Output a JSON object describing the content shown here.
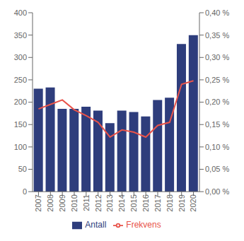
{
  "chart_data": {
    "type": "bar",
    "categories": [
      "2007",
      "2008",
      "2009",
      "2010",
      "2011",
      "2012",
      "2013",
      "2014",
      "2015",
      "2016",
      "2017",
      "2018",
      "2019",
      "2020"
    ],
    "series": [
      {
        "name": "Antall",
        "type": "bar",
        "color": "#2E3D7C",
        "values": [
          230,
          233,
          185,
          185,
          190,
          181,
          153,
          181,
          178,
          168,
          205,
          210,
          330,
          350
        ]
      },
      {
        "name": "Frekvens",
        "type": "line",
        "axis": "y2",
        "color": "#E8534A",
        "values": [
          0.00185,
          0.00195,
          0.00205,
          0.00183,
          0.0017,
          0.00155,
          0.00122,
          0.00138,
          0.00133,
          0.00122,
          0.00148,
          0.00155,
          0.0024,
          0.00248
        ]
      }
    ],
    "ylim": [
      0,
      400
    ],
    "yticks": [
      0,
      50,
      100,
      150,
      200,
      250,
      300,
      350,
      400
    ],
    "y2lim": [
      0,
      0.004
    ],
    "y2ticks": [
      {
        "value": 0,
        "label": "0,00 %"
      },
      {
        "value": 0.0005,
        "label": "0,05 %"
      },
      {
        "value": 0.001,
        "label": "0,10 %"
      },
      {
        "value": 0.0015,
        "label": "0,15 %"
      },
      {
        "value": 0.002,
        "label": "0,20 %"
      },
      {
        "value": 0.0025,
        "label": "0,25 %"
      },
      {
        "value": 0.003,
        "label": "0,30 %"
      },
      {
        "value": 0.0035,
        "label": "0,35 %"
      },
      {
        "value": 0.004,
        "label": "0,40 %"
      }
    ],
    "grid": false,
    "legend": "bottom"
  }
}
